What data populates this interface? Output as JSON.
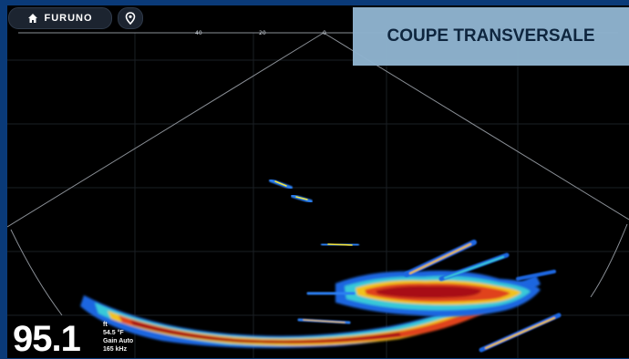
{
  "brand": {
    "name": "FURUNO"
  },
  "icons": {
    "home": "home-icon",
    "location": "location-pin-icon"
  },
  "scale": {
    "ticks": [
      "40",
      "20",
      "0"
    ]
  },
  "overlay": {
    "title": "COUPE TRANSVERSALE"
  },
  "readout": {
    "depth": "95.1",
    "unit": "ft",
    "temperature": "54.5 °F",
    "gain": "Gain Auto",
    "frequency": "165 kHz"
  },
  "colors": {
    "frame": "#0a3a78",
    "screen": "#000000",
    "badge": "#8fb3cf",
    "echo_strong": "#c0121b",
    "echo_medium": "#f2c21a",
    "echo_weak": "#2c7ff2"
  }
}
